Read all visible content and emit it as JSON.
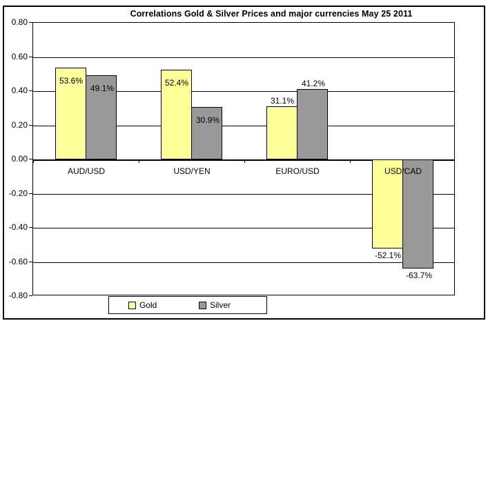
{
  "chart_data": {
    "type": "bar",
    "title": "Correlations Gold & Silver Prices and major currencies May 25 2011",
    "categories": [
      "AUD/USD",
      "USD/YEN",
      "EURO/USD",
      "USD/CAD"
    ],
    "series": [
      {
        "name": "Gold",
        "color": "#ffff99",
        "values": [
          0.536,
          0.524,
          0.311,
          -0.521
        ],
        "labels": [
          "53.6%",
          "52.4%",
          "31.1%",
          "-52.1%"
        ]
      },
      {
        "name": "Silver",
        "color": "#999999",
        "values": [
          0.491,
          0.309,
          0.412,
          -0.637
        ],
        "labels": [
          "49.1%",
          "30.9%",
          "41.2%",
          "-63.7%"
        ]
      }
    ],
    "ylim": [
      -0.8,
      0.8
    ],
    "ytick_step": 0.2,
    "ytick_labels": [
      "0.80",
      "0.60",
      "0.40",
      "0.20",
      "0.00",
      "-0.20",
      "-0.40",
      "-0.60",
      "-0.80"
    ],
    "grid": true,
    "legend_position": "bottom",
    "colors": {
      "axis": "#000000",
      "background": "#ffffff"
    }
  }
}
